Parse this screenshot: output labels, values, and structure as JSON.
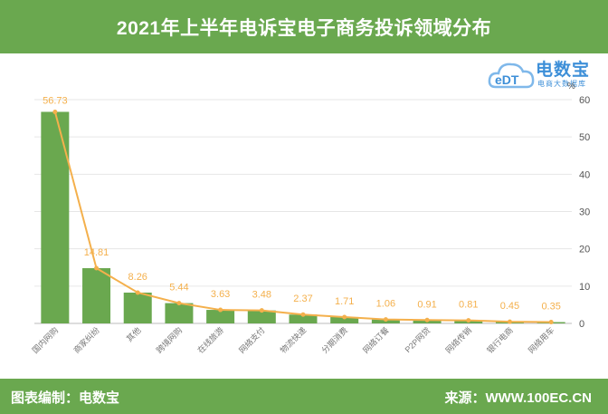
{
  "title": "2021年上半年电诉宝电子商务投诉领域分布",
  "footer": {
    "left": "图表编制：电数宝",
    "right": "来源：WWW.100EC.CN"
  },
  "logo": {
    "icon_text": "eDT",
    "name": "电数宝",
    "tagline": "电商大数据库"
  },
  "colors": {
    "header": "#6aa84f",
    "bar": "#6aa84f",
    "line": "#f4b04c",
    "logo": "#3d8fd8"
  },
  "chart_data": {
    "type": "bar",
    "categories": [
      "国内网购",
      "商家纠纷",
      "其他",
      "跨境网购",
      "在线旅游",
      "网络支付",
      "物流快递",
      "分期消费",
      "网络订餐",
      "P2P网贷",
      "网络传销",
      "银行电商",
      "网络用车"
    ],
    "values": [
      56.73,
      14.81,
      8.26,
      5.44,
      3.63,
      3.48,
      2.37,
      1.71,
      1.06,
      0.91,
      0.81,
      0.45,
      0.35
    ],
    "overlay": "line",
    "ylim": [
      0,
      60
    ],
    "yticks": [
      0,
      10,
      20,
      30,
      40,
      50,
      60
    ],
    "y_axis_side": "right",
    "unit": "%",
    "grid": true
  }
}
